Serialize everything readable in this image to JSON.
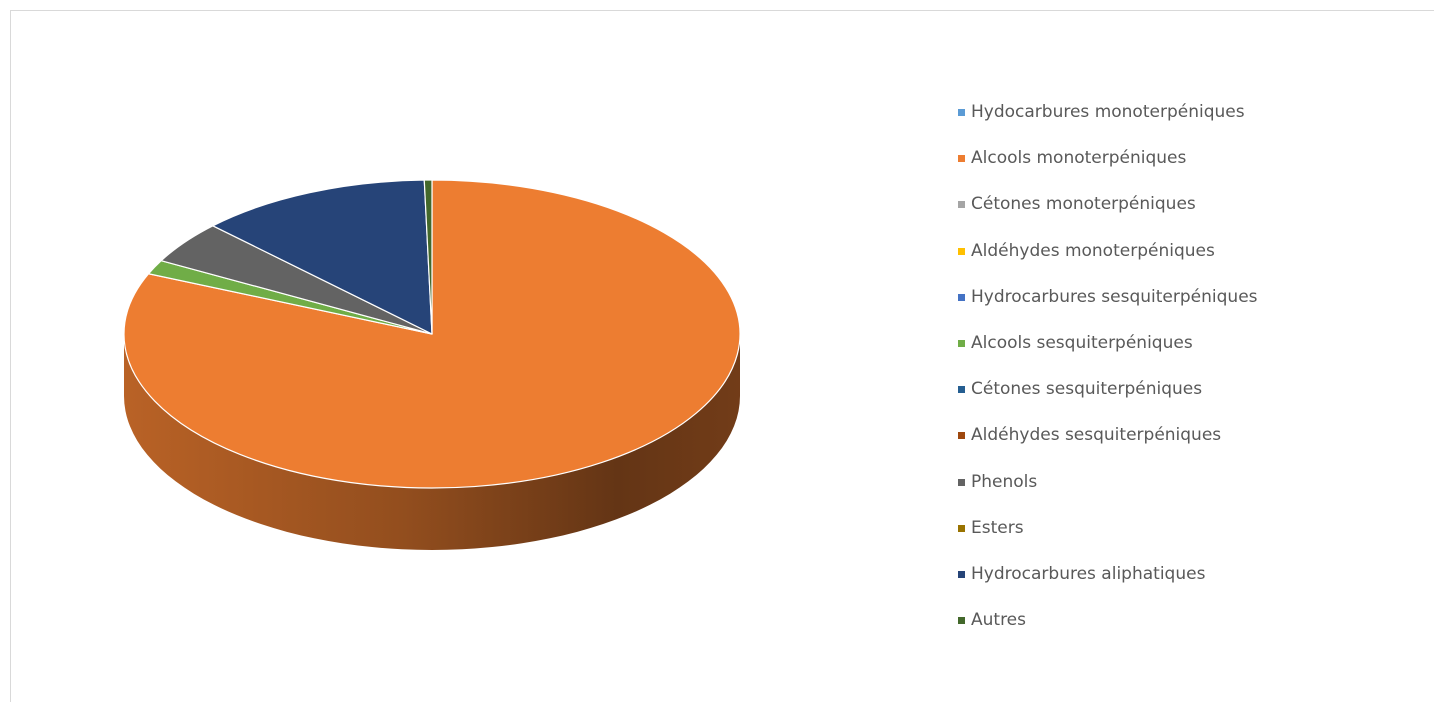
{
  "chart_data": {
    "type": "pie",
    "style": "3d",
    "title": "",
    "legend_position": "right",
    "categories": [
      "Hydocarbures monoterpéniques",
      "Alcools monoterpéniques",
      "Cétones monoterpéniques",
      "Aldéhydes monoterpéniques",
      "Hydrocarbures sesquiterpéniques",
      "Alcools sesquiterpéniques",
      "Cétones sesquiterpéniques",
      "Aldéhydes sesquiterpéniques",
      "Phenols",
      "Esters",
      "Hydrocarbures aliphatiques",
      "Autres"
    ],
    "values": [
      0,
      81.4,
      0,
      0,
      0,
      1.5,
      0,
      0,
      4.5,
      0,
      12.2,
      0.4
    ],
    "colors": [
      "#5b9bd5",
      "#ed7d31",
      "#a5a5a5",
      "#ffc000",
      "#4472c4",
      "#70ad47",
      "#255e91",
      "#9e480e",
      "#636363",
      "#997300",
      "#264478",
      "#43682b"
    ]
  }
}
